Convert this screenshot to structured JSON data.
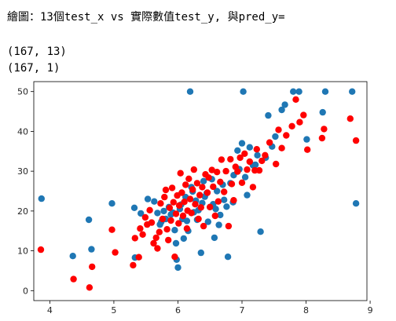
{
  "output": {
    "heading": "繪圖：13個test_x vs 實際數值test_y, 與pred_y=",
    "shape_line_1": "(167, 13)",
    "shape_line_2": "(167, 1)"
  },
  "chart_data": {
    "type": "scatter",
    "title": "",
    "xlabel": "",
    "ylabel": "",
    "xlim": [
      3.75,
      8.95
    ],
    "ylim": [
      -2.5,
      52.5
    ],
    "xticks": [
      4,
      5,
      6,
      7,
      8,
      9
    ],
    "yticks": [
      0,
      10,
      20,
      30,
      40,
      50
    ],
    "grid": false,
    "series": [
      {
        "color": "#1f77b4",
        "points": [
          [
            3.87,
            23.1
          ],
          [
            4.36,
            8.7
          ],
          [
            4.61,
            17.8
          ],
          [
            4.65,
            10.4
          ],
          [
            4.97,
            21.9
          ],
          [
            5.32,
            20.8
          ],
          [
            5.33,
            8.3
          ],
          [
            5.42,
            19.4
          ],
          [
            5.53,
            23.0
          ],
          [
            5.63,
            22.4
          ],
          [
            5.68,
            19.5
          ],
          [
            5.72,
            16.6
          ],
          [
            5.74,
            17.3
          ],
          [
            5.78,
            20.0
          ],
          [
            5.81,
            18.0
          ],
          [
            5.86,
            21.0
          ],
          [
            5.89,
            19.1
          ],
          [
            5.92,
            19.6
          ],
          [
            5.95,
            15.2
          ],
          [
            5.97,
            11.9
          ],
          [
            5.98,
            7.8
          ],
          [
            6.0,
            5.8
          ],
          [
            6.03,
            20.5
          ],
          [
            6.05,
            21.6
          ],
          [
            6.07,
            18.0
          ],
          [
            6.09,
            13.1
          ],
          [
            6.12,
            23.5
          ],
          [
            6.14,
            17.5
          ],
          [
            6.16,
            15.0
          ],
          [
            6.19,
            50.0
          ],
          [
            6.21,
            26.0
          ],
          [
            6.23,
            24.9
          ],
          [
            6.25,
            19.7
          ],
          [
            6.28,
            22.6
          ],
          [
            6.3,
            17.8
          ],
          [
            6.32,
            20.2
          ],
          [
            6.36,
            9.5
          ],
          [
            6.38,
            22.0
          ],
          [
            6.4,
            27.5
          ],
          [
            6.42,
            23.6
          ],
          [
            6.45,
            24.5
          ],
          [
            6.47,
            17.3
          ],
          [
            6.5,
            21.0
          ],
          [
            6.53,
            28.0
          ],
          [
            6.55,
            21.7
          ],
          [
            6.57,
            13.3
          ],
          [
            6.59,
            20.5
          ],
          [
            6.61,
            25.0
          ],
          [
            6.64,
            16.5
          ],
          [
            6.66,
            19.0
          ],
          [
            6.7,
            26.6
          ],
          [
            6.72,
            22.8
          ],
          [
            6.76,
            21.1
          ],
          [
            6.78,
            8.5
          ],
          [
            6.82,
            27.0
          ],
          [
            6.86,
            22.2
          ],
          [
            6.87,
            29.0
          ],
          [
            6.93,
            35.2
          ],
          [
            6.96,
            30.5
          ],
          [
            7.0,
            37.0
          ],
          [
            7.02,
            50.0
          ],
          [
            7.05,
            28.5
          ],
          [
            7.08,
            24.0
          ],
          [
            7.12,
            36.0
          ],
          [
            7.17,
            31.5
          ],
          [
            7.21,
            31.6
          ],
          [
            7.24,
            34.0
          ],
          [
            7.29,
            14.8
          ],
          [
            7.37,
            33.4
          ],
          [
            7.41,
            44.0
          ],
          [
            7.47,
            36.2
          ],
          [
            7.52,
            38.7
          ],
          [
            7.62,
            45.4
          ],
          [
            7.67,
            46.7
          ],
          [
            7.8,
            50.0
          ],
          [
            7.89,
            50.0
          ],
          [
            8.01,
            38.0
          ],
          [
            8.26,
            44.8
          ],
          [
            8.3,
            50.0
          ],
          [
            8.72,
            50.0
          ],
          [
            8.78,
            21.9
          ]
        ]
      },
      {
        "color": "#ff0000",
        "points": [
          [
            3.86,
            10.3
          ],
          [
            4.37,
            2.9
          ],
          [
            4.62,
            0.8
          ],
          [
            4.66,
            6.0
          ],
          [
            4.97,
            15.3
          ],
          [
            5.02,
            9.6
          ],
          [
            5.3,
            6.4
          ],
          [
            5.33,
            13.2
          ],
          [
            5.39,
            8.4
          ],
          [
            5.41,
            15.6
          ],
          [
            5.45,
            14.1
          ],
          [
            5.49,
            18.4
          ],
          [
            5.52,
            16.6
          ],
          [
            5.56,
            20.2
          ],
          [
            5.59,
            17.1
          ],
          [
            5.62,
            11.9
          ],
          [
            5.66,
            13.3
          ],
          [
            5.68,
            10.6
          ],
          [
            5.71,
            14.7
          ],
          [
            5.73,
            21.9
          ],
          [
            5.76,
            18.0
          ],
          [
            5.79,
            23.5
          ],
          [
            5.81,
            25.3
          ],
          [
            5.83,
            15.4
          ],
          [
            5.85,
            12.7
          ],
          [
            5.87,
            20.8
          ],
          [
            5.89,
            17.6
          ],
          [
            5.91,
            25.8
          ],
          [
            5.93,
            22.2
          ],
          [
            5.95,
            8.5
          ],
          [
            5.97,
            19.3
          ],
          [
            5.99,
            23.9
          ],
          [
            6.01,
            16.9
          ],
          [
            6.02,
            21.4
          ],
          [
            6.04,
            29.5
          ],
          [
            6.06,
            24.6
          ],
          [
            6.08,
            18.8
          ],
          [
            6.1,
            22.3
          ],
          [
            6.12,
            26.6
          ],
          [
            6.14,
            15.6
          ],
          [
            6.15,
            20.1
          ],
          [
            6.17,
            28.1
          ],
          [
            6.19,
            23.0
          ],
          [
            6.21,
            19.5
          ],
          [
            6.23,
            25.4
          ],
          [
            6.25,
            30.4
          ],
          [
            6.27,
            21.7
          ],
          [
            6.3,
            27.0
          ],
          [
            6.32,
            18.0
          ],
          [
            6.34,
            24.0
          ],
          [
            6.36,
            20.9
          ],
          [
            6.38,
            26.0
          ],
          [
            6.4,
            16.2
          ],
          [
            6.43,
            29.2
          ],
          [
            6.46,
            24.6
          ],
          [
            6.48,
            28.4
          ],
          [
            6.5,
            21.0
          ],
          [
            6.53,
            30.3
          ],
          [
            6.55,
            26.1
          ],
          [
            6.58,
            18.8
          ],
          [
            6.61,
            29.8
          ],
          [
            6.63,
            22.4
          ],
          [
            6.66,
            27.3
          ],
          [
            6.68,
            32.9
          ],
          [
            6.72,
            24.8
          ],
          [
            6.75,
            30.0
          ],
          [
            6.79,
            16.2
          ],
          [
            6.82,
            33.0
          ],
          [
            6.84,
            26.8
          ],
          [
            6.87,
            22.7
          ],
          [
            6.9,
            31.1
          ],
          [
            6.93,
            29.9
          ],
          [
            6.97,
            33.4
          ],
          [
            7.0,
            27.1
          ],
          [
            7.04,
            34.4
          ],
          [
            7.08,
            30.4
          ],
          [
            7.12,
            32.4
          ],
          [
            7.17,
            26.0
          ],
          [
            7.2,
            30.2
          ],
          [
            7.23,
            35.5
          ],
          [
            7.27,
            30.2
          ],
          [
            7.31,
            32.6
          ],
          [
            7.36,
            34.0
          ],
          [
            7.43,
            37.2
          ],
          [
            7.53,
            31.8
          ],
          [
            7.57,
            40.4
          ],
          [
            7.62,
            35.8
          ],
          [
            7.69,
            39.0
          ],
          [
            7.78,
            41.3
          ],
          [
            7.84,
            48.0
          ],
          [
            7.9,
            42.3
          ],
          [
            7.96,
            44.1
          ],
          [
            8.02,
            35.4
          ],
          [
            8.25,
            38.3
          ],
          [
            8.28,
            40.6
          ],
          [
            8.69,
            43.2
          ],
          [
            8.78,
            37.7
          ]
        ]
      }
    ]
  }
}
